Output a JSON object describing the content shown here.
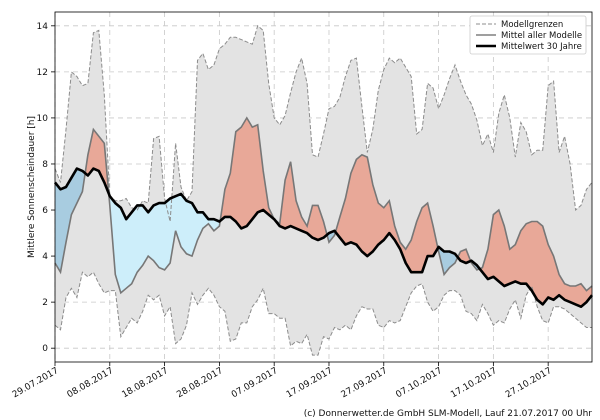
{
  "chart_data": {
    "type": "area",
    "ylabel": "Mittlere Sonnenscheindauer [h]",
    "xlabel": "",
    "ylim": [
      -0.6,
      14.6
    ],
    "yticks": [
      0,
      2,
      4,
      6,
      8,
      10,
      12,
      14
    ],
    "xlim_days": [
      0,
      98
    ],
    "xticks": [
      {
        "day": 0,
        "label": "29.07.2017"
      },
      {
        "day": 10,
        "label": "08.08.2017"
      },
      {
        "day": 20,
        "label": "18.08.2017"
      },
      {
        "day": 30,
        "label": "28.08.2017"
      },
      {
        "day": 40,
        "label": "07.09.2017"
      },
      {
        "day": 50,
        "label": "17.09.2017"
      },
      {
        "day": 60,
        "label": "27.09.2017"
      },
      {
        "day": 70,
        "label": "07.10.2017"
      },
      {
        "day": 80,
        "label": "17.10.2017"
      },
      {
        "day": 90,
        "label": "27.10.2017"
      }
    ],
    "grid": true,
    "legend_position": "top-right",
    "legend": {
      "bounds": "Modellgrenzen",
      "mean_models": "Mittel aller Modelle",
      "mean_30y": "Mittelwert 30 Jahre"
    },
    "colors": {
      "band_fill": "#e3e3e3",
      "bounds_line": "#8c8c8c",
      "mean_models": "#777777",
      "mean_30y": "#000000",
      "above_fill": "#e8a898",
      "below_fill_dark": "#a8cce0",
      "below_fill_light": "#cdeefa"
    },
    "x_days": [
      0,
      1,
      2,
      3,
      4,
      5,
      6,
      7,
      8,
      9,
      10,
      11,
      12,
      13,
      14,
      15,
      16,
      17,
      18,
      19,
      20,
      21,
      22,
      23,
      24,
      25,
      26,
      27,
      28,
      29,
      30,
      31,
      32,
      33,
      34,
      35,
      36,
      37,
      38,
      39,
      40,
      41,
      42,
      43,
      44,
      45,
      46,
      47,
      48,
      49,
      50,
      51,
      52,
      53,
      54,
      55,
      56,
      57,
      58,
      59,
      60,
      61,
      62,
      63,
      64,
      65,
      66,
      67,
      68,
      69,
      70,
      71,
      72,
      73,
      74,
      75,
      76,
      77,
      78,
      79,
      80,
      81,
      82,
      83,
      84,
      85,
      86,
      87,
      88,
      89,
      90,
      91,
      92,
      93,
      94,
      95,
      96,
      97,
      98
    ],
    "series": [
      {
        "name": "Modellgrenzen (oben)",
        "values": [
          7.8,
          7.2,
          9.5,
          12,
          11.8,
          11.4,
          11.5,
          13.7,
          13.8,
          11,
          6.6,
          6.4,
          6.4,
          6.5,
          6.1,
          6,
          6.4,
          6.3,
          9.1,
          9.2,
          6.5,
          5.5,
          8.9,
          7,
          6.4,
          6.8,
          12.5,
          12.8,
          12.1,
          12.3,
          13,
          13.2,
          13.5,
          13.5,
          13.4,
          13.3,
          13.2,
          14,
          13.8,
          11.5,
          10,
          9.7,
          10.1,
          11.1,
          12,
          12.6,
          11.5,
          8.4,
          8.3,
          9.3,
          10.4,
          10.5,
          10.9,
          11.8,
          12.5,
          12.6,
          10.5,
          8.5,
          9.5,
          11.2,
          12.1,
          12.6,
          12.4,
          12.6,
          12.2,
          11.8,
          9.3,
          9.5,
          11.5,
          11.3,
          10.4,
          11,
          11.7,
          12.3,
          11.6,
          11,
          10.6,
          9.9,
          8.8,
          9.3,
          8.5,
          10.2,
          11,
          10,
          8.3,
          9.8,
          9.4,
          8.4,
          8.6,
          8.6,
          11.4,
          11.6,
          8.5,
          9.2,
          8,
          6,
          6.2,
          6.9,
          7.2
        ]
      },
      {
        "name": "Modellgrenzen (unten)",
        "values": [
          1,
          0.8,
          2.2,
          2.6,
          2.2,
          3.3,
          3.1,
          3.3,
          2.8,
          2.4,
          2.5,
          2.5,
          0.5,
          0.9,
          1.3,
          1.1,
          1.6,
          2.3,
          2.1,
          2.3,
          1.4,
          1.8,
          0.2,
          0.4,
          1,
          2.4,
          1.9,
          2.3,
          2.6,
          2.3,
          1.8,
          1.6,
          0.3,
          0.4,
          1.1,
          1.1,
          1.8,
          2.1,
          2.6,
          1.5,
          1.5,
          1.3,
          1.3,
          0.1,
          0.3,
          0.2,
          0.6,
          -0.3,
          -0.3,
          0.5,
          0.4,
          0.9,
          0.8,
          1,
          0.8,
          1.4,
          1.8,
          1.7,
          1.7,
          1,
          0.9,
          1.2,
          1.1,
          1.2,
          1.8,
          2.4,
          2.7,
          2.8,
          2,
          1.6,
          1.8,
          2.3,
          2.5,
          2.5,
          2.3,
          1.6,
          1.5,
          1.2,
          1.9,
          1.5,
          1,
          1.2,
          1.1,
          1.7,
          2.1,
          1.3,
          2.3,
          2.7,
          1.8,
          1.2,
          1.1,
          1.8,
          1.8,
          1.7,
          1.5,
          1.3,
          1.1,
          0.9,
          0.9
        ]
      },
      {
        "name": "Mittel aller Modelle",
        "values": [
          3.7,
          3.3,
          4.6,
          5.8,
          6.3,
          6.8,
          8.4,
          9.5,
          9.2,
          8.9,
          6.2,
          3.2,
          2.4,
          2.6,
          2.8,
          3.3,
          3.6,
          4,
          3.8,
          3.5,
          3.4,
          3.7,
          5.1,
          4.4,
          4.1,
          4,
          4.7,
          5.2,
          5.4,
          5.1,
          5.3,
          6.9,
          7.6,
          9.4,
          9.6,
          10,
          9.6,
          9.7,
          7.7,
          6.1,
          5.6,
          5.4,
          7.3,
          8.1,
          6.4,
          5.7,
          5.3,
          6.2,
          6.2,
          5.5,
          4.6,
          4.9,
          5.7,
          6.5,
          7.6,
          8.2,
          8.4,
          8.3,
          7.1,
          6.3,
          6.1,
          6.4,
          5.3,
          4.6,
          4.3,
          4.7,
          5.5,
          6.1,
          6.3,
          5.3,
          4.2,
          3.2,
          3.5,
          3.7,
          4.2,
          4.3,
          3.7,
          3.4,
          3.5,
          4.3,
          5.8,
          6,
          5.3,
          4.3,
          4.5,
          5.1,
          5.4,
          5.5,
          5.5,
          5.3,
          4.5,
          4,
          3.2,
          2.8,
          2.7,
          2.7,
          2.8,
          2.5,
          2.7
        ]
      },
      {
        "name": "Mittelwert 30 Jahre",
        "values": [
          7.2,
          6.9,
          7,
          7.4,
          7.8,
          7.7,
          7.5,
          7.8,
          7.7,
          7.2,
          6.6,
          6.3,
          6.1,
          5.6,
          5.9,
          6.2,
          6.2,
          5.9,
          6.2,
          6.3,
          6.3,
          6.5,
          6.6,
          6.7,
          6.4,
          6.3,
          5.9,
          5.9,
          5.6,
          5.6,
          5.5,
          5.7,
          5.7,
          5.5,
          5.2,
          5.3,
          5.6,
          5.9,
          6,
          5.8,
          5.6,
          5.3,
          5.2,
          5.3,
          5.2,
          5.1,
          5,
          4.8,
          4.7,
          4.8,
          5,
          5.1,
          4.8,
          4.5,
          4.6,
          4.5,
          4.2,
          4,
          4.2,
          4.5,
          4.7,
          5,
          4.7,
          4.3,
          3.7,
          3.3,
          3.3,
          3.3,
          4,
          4,
          4.4,
          4.2,
          4.2,
          4.1,
          3.8,
          3.7,
          3.8,
          3.6,
          3.3,
          3,
          3.1,
          2.9,
          2.7,
          2.8,
          2.9,
          2.8,
          2.8,
          2.5,
          2.1,
          1.9,
          2.2,
          2.1,
          2.3,
          2.1,
          2,
          1.9,
          1.8,
          2,
          2.3
        ]
      }
    ]
  },
  "credit": "(c) Donnerwetter.de GmbH SLM-Modell, Lauf 21.07.2017 00 Uhr"
}
